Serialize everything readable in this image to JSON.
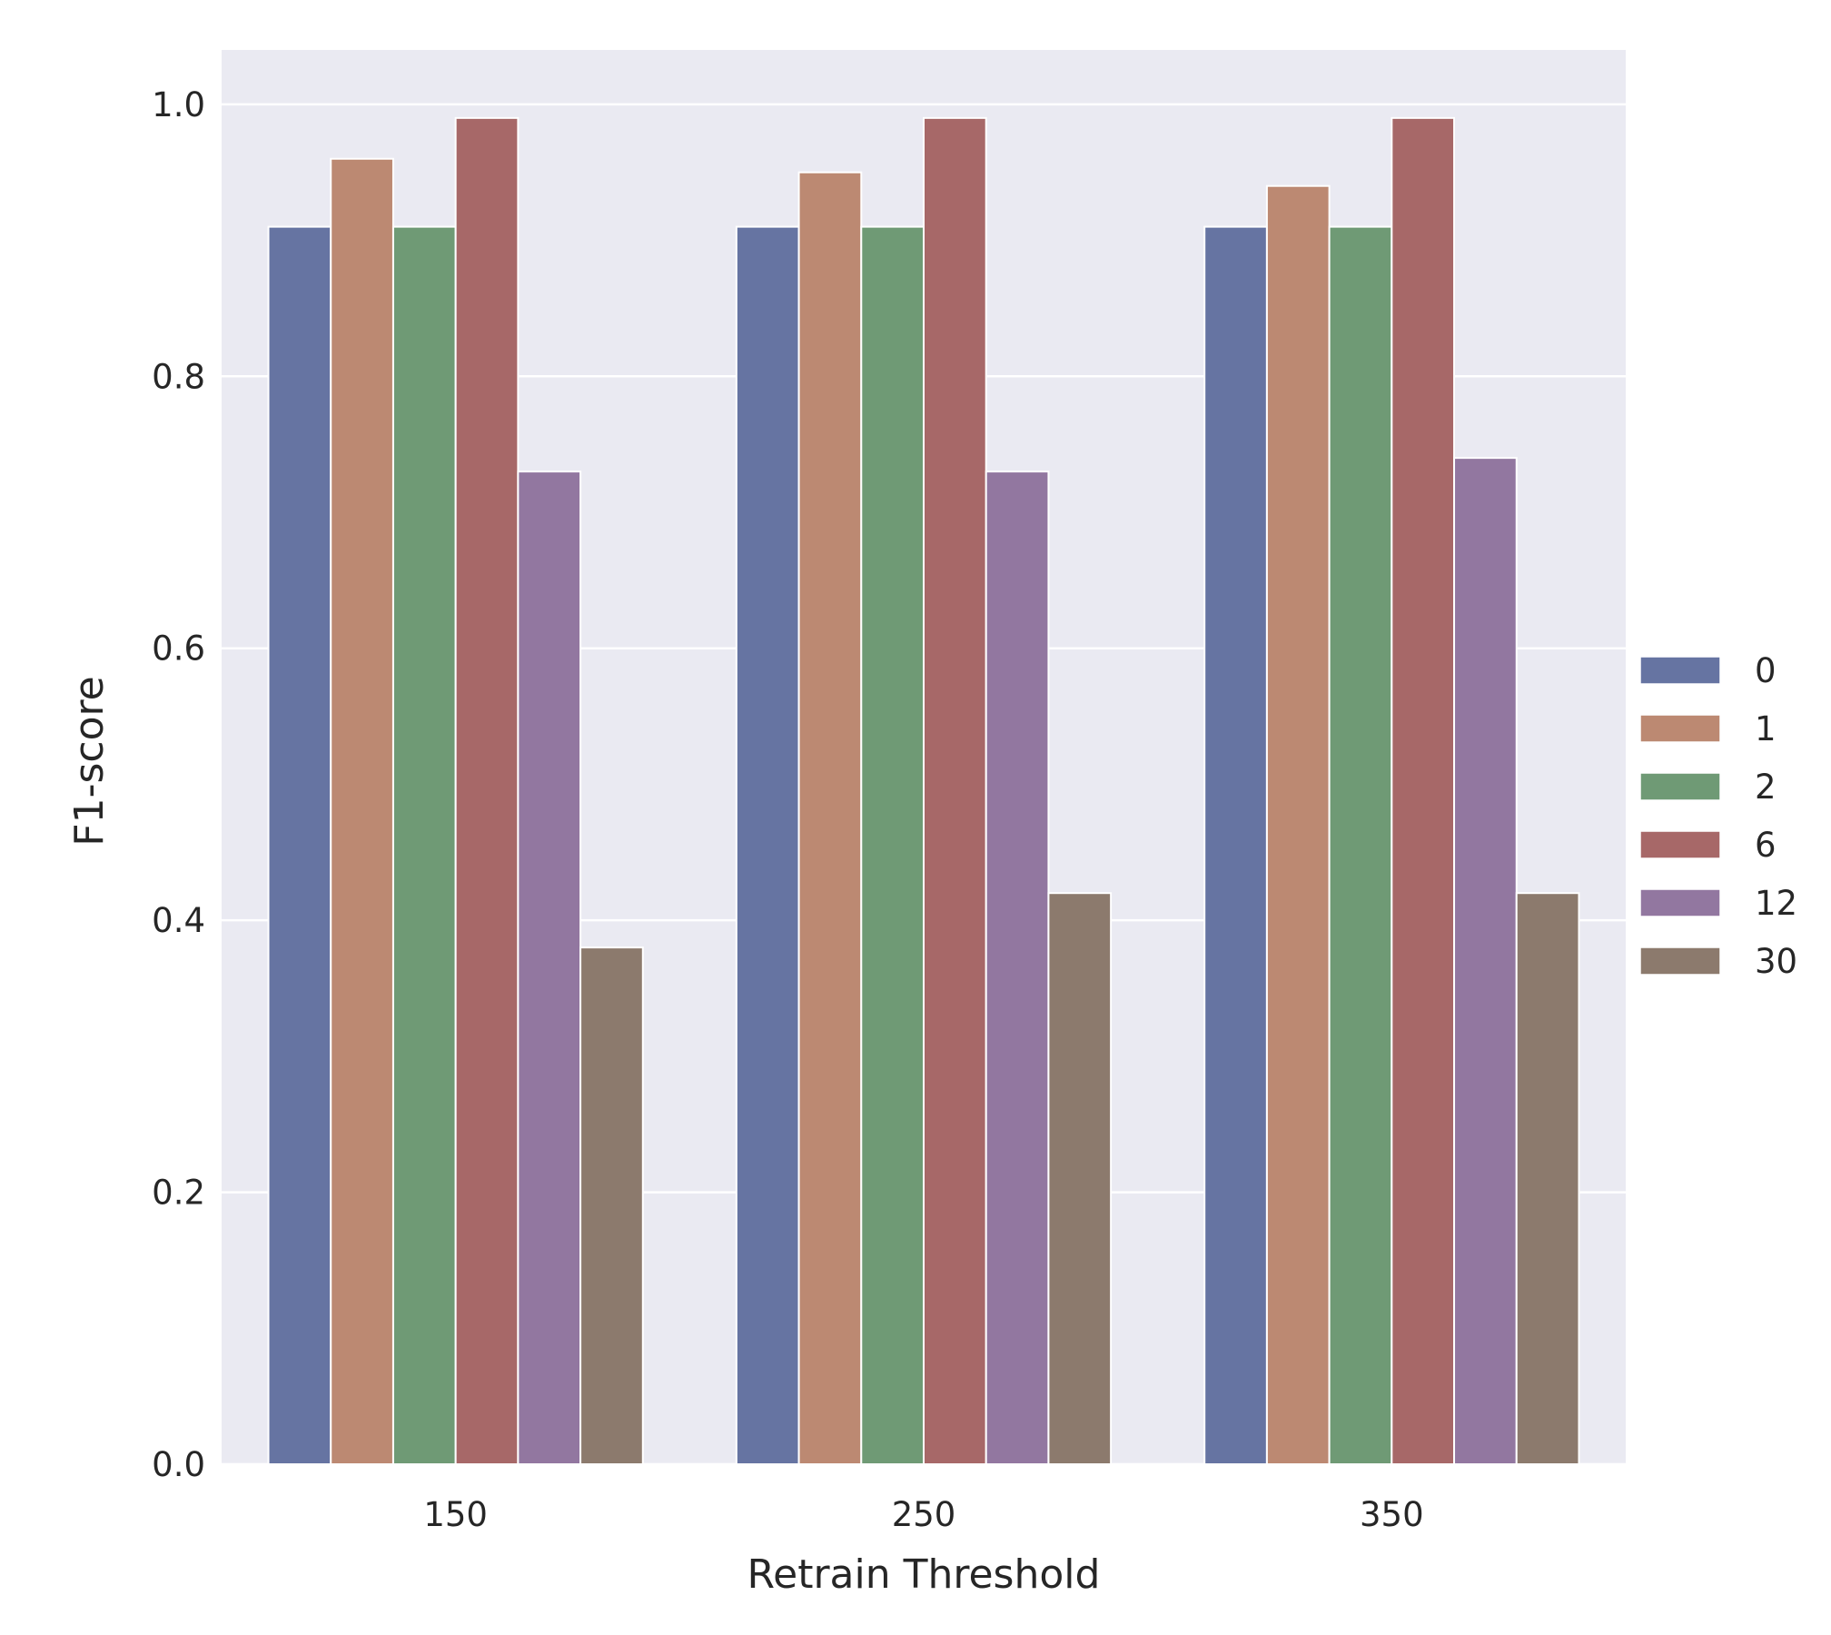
{
  "chart_data": {
    "type": "bar",
    "title": "",
    "xlabel": "Retrain Threshold",
    "ylabel": "F1-score",
    "categories": [
      "150",
      "250",
      "350"
    ],
    "series": [
      {
        "name": "0",
        "values": [
          0.91,
          0.91,
          0.91
        ]
      },
      {
        "name": "1",
        "values": [
          0.96,
          0.95,
          0.94
        ]
      },
      {
        "name": "2",
        "values": [
          0.91,
          0.91,
          0.91
        ]
      },
      {
        "name": "6",
        "values": [
          0.99,
          0.99,
          0.99
        ]
      },
      {
        "name": "12",
        "values": [
          0.73,
          0.73,
          0.74
        ]
      },
      {
        "name": "30",
        "values": [
          0.38,
          0.42,
          0.42
        ]
      }
    ],
    "ylim": [
      0.0,
      1.04
    ],
    "yticks": [
      "0.0",
      "0.2",
      "0.4",
      "0.6",
      "0.8",
      "1.0"
    ],
    "grid": true,
    "legend_position": "right",
    "colors": [
      "#6674a2",
      "#bc8972",
      "#6f9a75",
      "#a76868",
      "#9277a0",
      "#8c7a6d"
    ],
    "background": "#eaeaf2"
  }
}
